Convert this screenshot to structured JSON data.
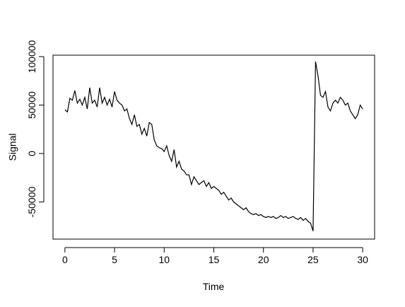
{
  "chart_data": {
    "type": "line",
    "x_label": "Time",
    "y_label": "Signal",
    "x": [
      0,
      0.25,
      0.5,
      0.75,
      1,
      1.25,
      1.5,
      1.75,
      2,
      2.25,
      2.5,
      2.75,
      3,
      3.25,
      3.5,
      3.75,
      4,
      4.25,
      4.5,
      4.75,
      5,
      5.25,
      5.5,
      5.75,
      6,
      6.25,
      6.5,
      6.75,
      7,
      7.25,
      7.5,
      7.75,
      8,
      8.25,
      8.5,
      8.75,
      9,
      9.25,
      9.5,
      9.75,
      10,
      10.25,
      10.5,
      10.75,
      11,
      11.25,
      11.5,
      11.75,
      12,
      12.25,
      12.5,
      12.75,
      13,
      13.25,
      13.5,
      13.75,
      14,
      14.25,
      14.5,
      14.75,
      15,
      15.25,
      15.5,
      15.75,
      16,
      16.25,
      16.5,
      16.75,
      17,
      17.25,
      17.5,
      17.75,
      18,
      18.25,
      18.5,
      18.75,
      19,
      19.25,
      19.5,
      19.75,
      20,
      20.25,
      20.5,
      20.75,
      21,
      21.25,
      21.5,
      21.75,
      22,
      22.25,
      22.5,
      22.75,
      23,
      23.25,
      23.5,
      23.75,
      24,
      24.25,
      24.5,
      24.75,
      25,
      25.25,
      25.5,
      25.75,
      26,
      26.25,
      26.5,
      26.75,
      27,
      27.25,
      27.5,
      27.75,
      28,
      28.25,
      28.5,
      28.75,
      29,
      29.25,
      29.5,
      29.75,
      30
    ],
    "series": [
      {
        "name": "Signal",
        "color": "#000000",
        "values": [
          45000,
          43000,
          57000,
          55000,
          65000,
          52000,
          56000,
          50000,
          58000,
          46000,
          68000,
          52000,
          55000,
          48000,
          68000,
          52000,
          58000,
          50000,
          56000,
          48000,
          64000,
          55000,
          52000,
          50000,
          44000,
          46000,
          36000,
          30000,
          40000,
          28000,
          30000,
          20000,
          26000,
          18000,
          32000,
          30000,
          14000,
          8000,
          6000,
          5000,
          2000,
          8000,
          -2000,
          -8000,
          4000,
          -14000,
          -8000,
          -16000,
          -18000,
          -22000,
          -22000,
          -32000,
          -24000,
          -28000,
          -32000,
          -30000,
          -28000,
          -34000,
          -30000,
          -36000,
          -34000,
          -36000,
          -38000,
          -42000,
          -40000,
          -44000,
          -48000,
          -46000,
          -50000,
          -52000,
          -54000,
          -56000,
          -58000,
          -56000,
          -60000,
          -62000,
          -63000,
          -62000,
          -64000,
          -63000,
          -65000,
          -66000,
          -65000,
          -66000,
          -65000,
          -67000,
          -66000,
          -64000,
          -66000,
          -65000,
          -67000,
          -66000,
          -65000,
          -67000,
          -68000,
          -66000,
          -69000,
          -67000,
          -70000,
          -72000,
          -80000,
          95000,
          80000,
          60000,
          58000,
          64000,
          48000,
          44000,
          52000,
          55000,
          52000,
          58000,
          55000,
          50000,
          52000,
          44000,
          40000,
          36000,
          40000,
          50000,
          46000
        ]
      }
    ],
    "xlim": [
      -1.2,
      31.2
    ],
    "xticks": [
      0,
      5,
      10,
      15,
      20,
      25,
      30
    ],
    "ylim": [
      -88300,
      101500
    ],
    "yticks": [
      -50000,
      0,
      50000,
      100000
    ]
  }
}
